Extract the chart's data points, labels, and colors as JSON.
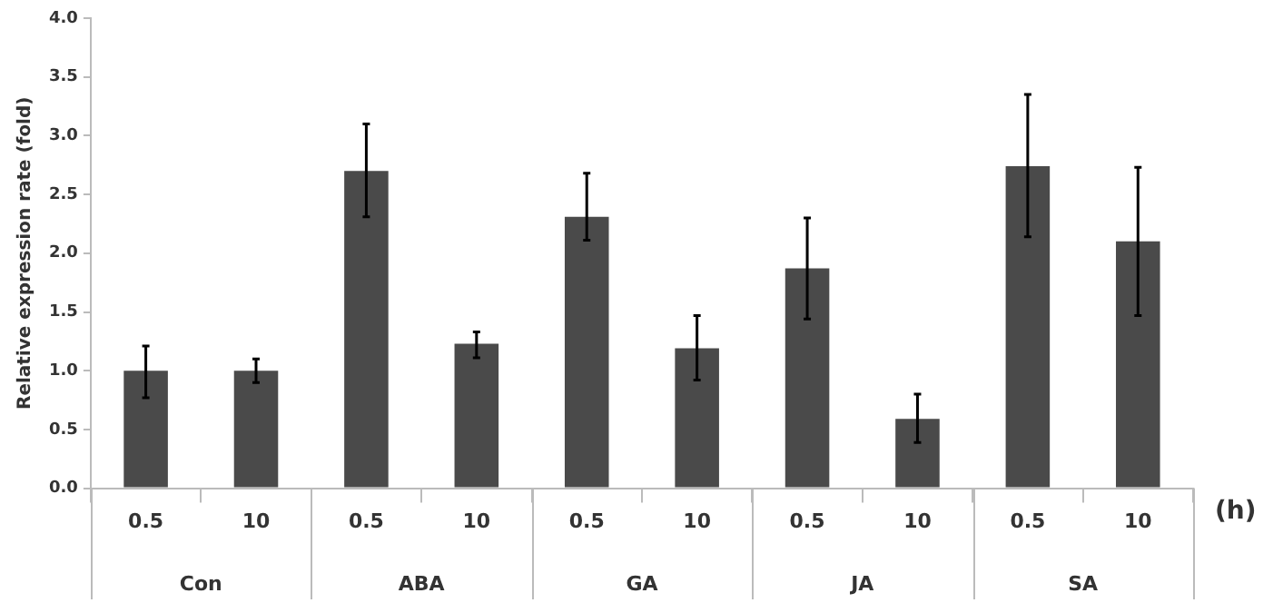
{
  "chart_data": {
    "type": "bar",
    "ylabel": "Relative expression rate (fold)",
    "categories": [
      "0.5",
      "10",
      "0.5",
      "10",
      "0.5",
      "10",
      "0.5",
      "10",
      "0.5",
      "10"
    ],
    "values": [
      1.0,
      1.0,
      2.7,
      1.23,
      2.31,
      1.19,
      1.87,
      0.59,
      2.74,
      2.1
    ],
    "errors": [
      [
        0.77,
        1.21
      ],
      [
        0.9,
        1.1
      ],
      [
        2.31,
        3.1
      ],
      [
        1.11,
        1.33
      ],
      [
        2.11,
        2.68
      ],
      [
        0.92,
        1.47
      ],
      [
        1.44,
        2.3
      ],
      [
        0.39,
        0.8
      ],
      [
        2.14,
        3.35
      ],
      [
        1.47,
        2.73
      ]
    ],
    "color": "#4a4a4a",
    "ylim": [
      0,
      4
    ],
    "yticks": [
      {
        "value": 0,
        "label": "0.0"
      },
      {
        "value": 0.5,
        "label": "0.5"
      },
      {
        "value": 1,
        "label": "1.0"
      },
      {
        "value": 1.5,
        "label": "1.5"
      },
      {
        "value": 2,
        "label": "2.0"
      },
      {
        "value": 2.5,
        "label": "2.5"
      },
      {
        "value": 3,
        "label": "3.0"
      },
      {
        "value": 3.5,
        "label": "3.5"
      },
      {
        "value": 4,
        "label": "4.0"
      }
    ],
    "annotations": [
      "Con",
      "ABA",
      "GA",
      "JA",
      "SA",
      "(h)"
    ],
    "grid": false,
    "legend": false
  }
}
